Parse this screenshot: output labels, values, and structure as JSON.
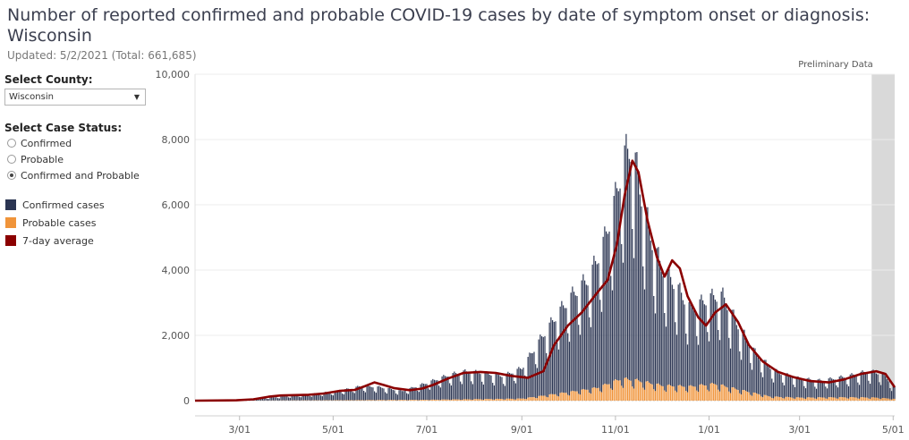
{
  "header": {
    "title": "Number of reported confirmed and probable COVID-19 cases by date of symptom onset or diagnosis: Wisconsin",
    "updated": "Updated: 5/2/2021 (Total: 661,685)"
  },
  "controls": {
    "county_label": "Select County:",
    "county_value": "Wisconsin",
    "status_label": "Select Case Status:",
    "status_options": [
      "Confirmed",
      "Probable",
      "Confirmed and Probable"
    ],
    "status_selected": 2
  },
  "legend": {
    "items": [
      {
        "label": "Confirmed cases",
        "color": "#2b3552"
      },
      {
        "label": "Probable cases",
        "color": "#f0943a"
      },
      {
        "label": "7-day average",
        "color": "#8b0000"
      }
    ]
  },
  "chart_data": {
    "type": "bar",
    "x_start": "2020-02-01",
    "x_end": "2021-05-02",
    "ylim": [
      0,
      10000
    ],
    "y_ticks": [
      0,
      2000,
      4000,
      6000,
      8000,
      10000
    ],
    "y_tick_labels": [
      "0",
      "2,000",
      "4,000",
      "6,000",
      "8,000",
      "10,000"
    ],
    "x_ticks": [
      "2020-03-01",
      "2020-05-01",
      "2020-07-01",
      "2020-09-01",
      "2020-11-01",
      "2021-01-01",
      "2021-03-01",
      "2021-05-01"
    ],
    "x_tick_labels": [
      "3/01",
      "5/01",
      "7/01",
      "9/01",
      "11/01",
      "1/01",
      "3/01",
      "5/01"
    ],
    "preliminary_label": "Preliminary Data",
    "preliminary_range": [
      "2021-04-17",
      "2021-05-02"
    ],
    "series": [
      {
        "name": "Confirmed cases",
        "color": "#2b3552",
        "kind": "bar",
        "points": [
          [
            "2020-02-01",
            0
          ],
          [
            "2020-03-01",
            5
          ],
          [
            "2020-03-20",
            80
          ],
          [
            "2020-04-05",
            150
          ],
          [
            "2020-04-20",
            200
          ],
          [
            "2020-05-05",
            280
          ],
          [
            "2020-05-20",
            420
          ],
          [
            "2020-06-01",
            380
          ],
          [
            "2020-06-15",
            260
          ],
          [
            "2020-07-01",
            500
          ],
          [
            "2020-07-15",
            720
          ],
          [
            "2020-07-25",
            820
          ],
          [
            "2020-08-05",
            790
          ],
          [
            "2020-08-20",
            680
          ],
          [
            "2020-09-01",
            900
          ],
          [
            "2020-09-15",
            1800
          ],
          [
            "2020-09-25",
            2400
          ],
          [
            "2020-10-05",
            2900
          ],
          [
            "2020-10-15",
            3300
          ],
          [
            "2020-10-25",
            4300
          ],
          [
            "2020-11-01",
            5400
          ],
          [
            "2020-11-07",
            6600
          ],
          [
            "2020-11-12",
            6900
          ],
          [
            "2020-11-18",
            5500
          ],
          [
            "2020-11-25",
            4200
          ],
          [
            "2020-12-01",
            3500
          ],
          [
            "2020-12-10",
            3000
          ],
          [
            "2020-12-20",
            2300
          ],
          [
            "2021-01-01",
            2550
          ],
          [
            "2021-01-10",
            2650
          ],
          [
            "2021-01-20",
            1900
          ],
          [
            "2021-02-01",
            1150
          ],
          [
            "2021-02-15",
            720
          ],
          [
            "2021-03-01",
            560
          ],
          [
            "2021-03-15",
            500
          ],
          [
            "2021-04-01",
            620
          ],
          [
            "2021-04-15",
            780
          ],
          [
            "2021-04-25",
            700
          ],
          [
            "2021-05-02",
            330
          ]
        ]
      },
      {
        "name": "Probable cases",
        "color": "#f0943a",
        "kind": "bar",
        "points": [
          [
            "2020-02-01",
            0
          ],
          [
            "2020-03-01",
            0
          ],
          [
            "2020-05-01",
            10
          ],
          [
            "2020-07-01",
            25
          ],
          [
            "2020-09-01",
            60
          ],
          [
            "2020-10-01",
            250
          ],
          [
            "2020-10-20",
            380
          ],
          [
            "2020-11-05",
            650
          ],
          [
            "2020-11-15",
            600
          ],
          [
            "2020-12-01",
            450
          ],
          [
            "2020-12-20",
            420
          ],
          [
            "2021-01-05",
            500
          ],
          [
            "2021-01-20",
            330
          ],
          [
            "2021-02-10",
            120
          ],
          [
            "2021-03-01",
            90
          ],
          [
            "2021-04-01",
            100
          ],
          [
            "2021-04-20",
            90
          ],
          [
            "2021-05-02",
            50
          ]
        ]
      },
      {
        "name": "7-day average",
        "color": "#8b0000",
        "kind": "line",
        "points": [
          [
            "2020-02-01",
            0
          ],
          [
            "2020-02-28",
            10
          ],
          [
            "2020-03-10",
            40
          ],
          [
            "2020-03-20",
            120
          ],
          [
            "2020-03-28",
            160
          ],
          [
            "2020-04-15",
            180
          ],
          [
            "2020-04-25",
            220
          ],
          [
            "2020-05-05",
            300
          ],
          [
            "2020-05-15",
            330
          ],
          [
            "2020-05-22",
            450
          ],
          [
            "2020-05-28",
            560
          ],
          [
            "2020-06-03",
            480
          ],
          [
            "2020-06-10",
            380
          ],
          [
            "2020-06-20",
            320
          ],
          [
            "2020-06-28",
            370
          ],
          [
            "2020-07-05",
            480
          ],
          [
            "2020-07-15",
            680
          ],
          [
            "2020-07-25",
            850
          ],
          [
            "2020-08-05",
            880
          ],
          [
            "2020-08-15",
            850
          ],
          [
            "2020-08-25",
            760
          ],
          [
            "2020-09-05",
            700
          ],
          [
            "2020-09-15",
            900
          ],
          [
            "2020-09-22",
            1700
          ],
          [
            "2020-10-01",
            2300
          ],
          [
            "2020-10-10",
            2700
          ],
          [
            "2020-10-20",
            3300
          ],
          [
            "2020-10-27",
            3700
          ],
          [
            "2020-11-02",
            4800
          ],
          [
            "2020-11-07",
            6300
          ],
          [
            "2020-11-12",
            7350
          ],
          [
            "2020-11-16",
            7000
          ],
          [
            "2020-11-22",
            5500
          ],
          [
            "2020-11-28",
            4400
          ],
          [
            "2020-12-03",
            3800
          ],
          [
            "2020-12-08",
            4300
          ],
          [
            "2020-12-13",
            4050
          ],
          [
            "2020-12-18",
            3200
          ],
          [
            "2020-12-25",
            2550
          ],
          [
            "2020-12-30",
            2300
          ],
          [
            "2021-01-05",
            2700
          ],
          [
            "2021-01-12",
            2950
          ],
          [
            "2021-01-20",
            2400
          ],
          [
            "2021-01-27",
            1700
          ],
          [
            "2021-02-05",
            1200
          ],
          [
            "2021-02-15",
            880
          ],
          [
            "2021-02-25",
            720
          ],
          [
            "2021-03-08",
            600
          ],
          [
            "2021-03-20",
            560
          ],
          [
            "2021-03-30",
            650
          ],
          [
            "2021-04-10",
            820
          ],
          [
            "2021-04-20",
            900
          ],
          [
            "2021-04-26",
            820
          ],
          [
            "2021-05-02",
            410
          ]
        ]
      }
    ]
  }
}
